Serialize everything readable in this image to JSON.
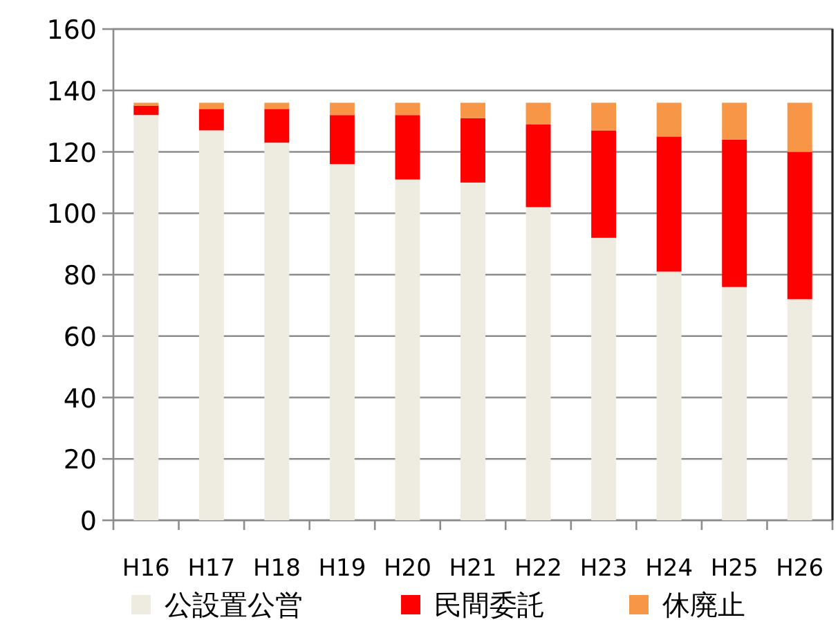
{
  "chart_data": {
    "type": "bar",
    "stacked": true,
    "categories": [
      "H16",
      "H17",
      "H18",
      "H19",
      "H20",
      "H21",
      "H22",
      "H23",
      "H24",
      "H25",
      "H26"
    ],
    "series": [
      {
        "name": "公設置公営",
        "color": "#eeebe1",
        "values": [
          132,
          127,
          123,
          116,
          111,
          110,
          102,
          92,
          81,
          76,
          72
        ]
      },
      {
        "name": "民間委託",
        "color": "#ff0000",
        "values": [
          3,
          7,
          11,
          16,
          21,
          21,
          27,
          35,
          44,
          48,
          48
        ]
      },
      {
        "name": "休廃止",
        "color": "#f79646",
        "values": [
          1,
          2,
          2,
          4,
          4,
          5,
          7,
          9,
          11,
          12,
          16
        ]
      }
    ],
    "ylim": [
      0,
      160
    ],
    "yticks": [
      0,
      20,
      40,
      60,
      80,
      100,
      120,
      140,
      160
    ],
    "grid": "y",
    "legend": "bottom"
  }
}
